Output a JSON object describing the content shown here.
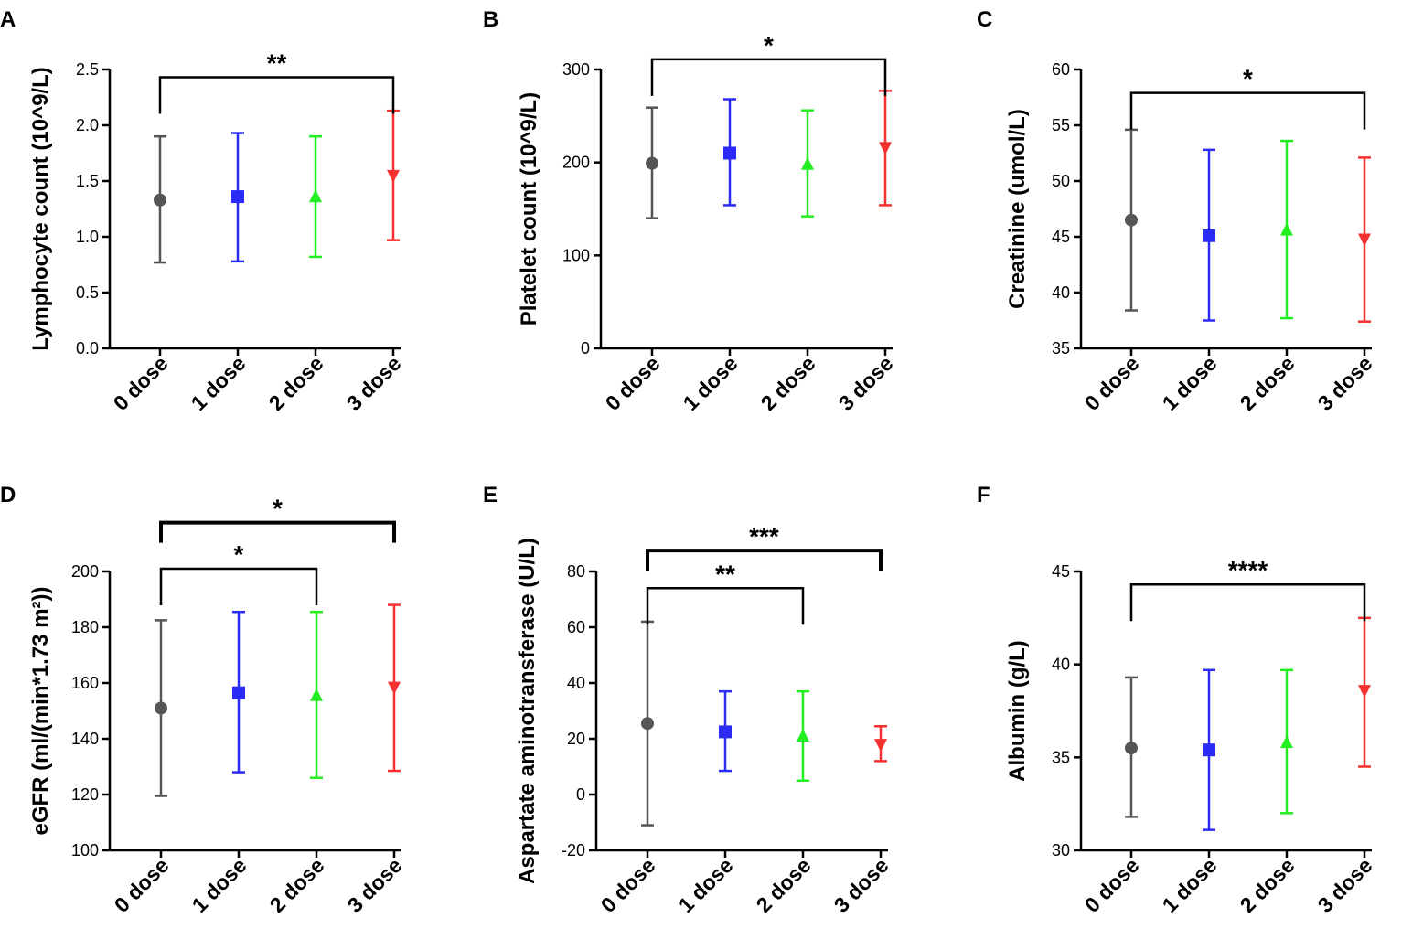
{
  "chart_data": [
    {
      "panel": "A",
      "type": "scatter",
      "title": "",
      "xlabel": "",
      "ylabel": "Lymphocyte count (10^9/L)",
      "categories": [
        "0 dose",
        "1 dose",
        "2 dose",
        "3 dose"
      ],
      "ylim": [
        0,
        2.5
      ],
      "yticks": [
        0.0,
        0.5,
        1.0,
        1.5,
        2.0,
        2.5
      ],
      "ytick_labels": [
        "0.0",
        "0.5",
        "1.0",
        "1.5",
        "2.0",
        "2.5"
      ],
      "points": [
        {
          "category": "0 dose",
          "mean": 1.33,
          "low": 0.77,
          "high": 1.9,
          "marker": "circle",
          "color": "#555555"
        },
        {
          "category": "1 dose",
          "mean": 1.36,
          "low": 0.78,
          "high": 1.93,
          "marker": "square",
          "color": "#2b2bf5"
        },
        {
          "category": "2 dose",
          "mean": 1.36,
          "low": 0.82,
          "high": 1.9,
          "marker": "triangle-up",
          "color": "#22ee22"
        },
        {
          "category": "3 dose",
          "mean": 1.55,
          "low": 0.97,
          "high": 2.13,
          "marker": "triangle-down",
          "color": "#f53030"
        }
      ],
      "significance": [
        {
          "from": "0 dose",
          "to": "3 dose",
          "label": "**",
          "y": 2.43,
          "thick": false
        }
      ]
    },
    {
      "panel": "B",
      "type": "scatter",
      "title": "",
      "xlabel": "",
      "ylabel": "Platelet count (10^9/L)",
      "categories": [
        "0 dose",
        "1 dose",
        "2 dose",
        "3 dose"
      ],
      "ylim": [
        0,
        300
      ],
      "yticks": [
        0,
        100,
        200,
        300
      ],
      "ytick_labels": [
        "0",
        "100",
        "200",
        "300"
      ],
      "points": [
        {
          "category": "0 dose",
          "mean": 199,
          "low": 140,
          "high": 259,
          "marker": "circle",
          "color": "#555555"
        },
        {
          "category": "1 dose",
          "mean": 210,
          "low": 154,
          "high": 268,
          "marker": "square",
          "color": "#2b2bf5"
        },
        {
          "category": "2 dose",
          "mean": 198,
          "low": 142,
          "high": 256,
          "marker": "triangle-up",
          "color": "#22ee22"
        },
        {
          "category": "3 dose",
          "mean": 216,
          "low": 154,
          "high": 277,
          "marker": "triangle-down",
          "color": "#f53030"
        }
      ],
      "significance": [
        {
          "from": "0 dose",
          "to": "3 dose",
          "label": "*",
          "y": 311,
          "thick": false
        }
      ]
    },
    {
      "panel": "C",
      "type": "scatter",
      "title": "",
      "xlabel": "",
      "ylabel": "Creatinine (umol/L)",
      "categories": [
        "0 dose",
        "1 dose",
        "2 dose",
        "3 dose"
      ],
      "ylim": [
        35,
        60
      ],
      "yticks": [
        35,
        40,
        45,
        50,
        55,
        60
      ],
      "ytick_labels": [
        "35",
        "40",
        "45",
        "50",
        "55",
        "60"
      ],
      "points": [
        {
          "category": "0 dose",
          "mean": 46.5,
          "low": 38.4,
          "high": 54.6,
          "marker": "circle",
          "color": "#555555"
        },
        {
          "category": "1 dose",
          "mean": 45.1,
          "low": 37.5,
          "high": 52.8,
          "marker": "square",
          "color": "#2b2bf5"
        },
        {
          "category": "2 dose",
          "mean": 45.6,
          "low": 37.7,
          "high": 53.6,
          "marker": "triangle-up",
          "color": "#22ee22"
        },
        {
          "category": "3 dose",
          "mean": 44.8,
          "low": 37.4,
          "high": 52.1,
          "marker": "triangle-down",
          "color": "#f53030"
        }
      ],
      "significance": [
        {
          "from": "0 dose",
          "to": "3 dose",
          "label": "*",
          "y": 57.9,
          "thick": false
        }
      ]
    },
    {
      "panel": "D",
      "type": "scatter",
      "title": "",
      "xlabel": "",
      "ylabel": "eGFR (ml/(min*1.73 m²))",
      "categories": [
        "0 dose",
        "1 dose",
        "2 dose",
        "3 dose"
      ],
      "ylim": [
        100,
        200
      ],
      "yticks": [
        100,
        120,
        140,
        160,
        180,
        200
      ],
      "ytick_labels": [
        "100",
        "120",
        "140",
        "160",
        "180",
        "200"
      ],
      "points": [
        {
          "category": "0 dose",
          "mean": 151,
          "low": 119.5,
          "high": 182.5,
          "marker": "circle",
          "color": "#555555"
        },
        {
          "category": "1 dose",
          "mean": 156.5,
          "low": 128,
          "high": 185.5,
          "marker": "square",
          "color": "#2b2bf5"
        },
        {
          "category": "2 dose",
          "mean": 155.5,
          "low": 126,
          "high": 185.5,
          "marker": "triangle-up",
          "color": "#22ee22"
        },
        {
          "category": "3 dose",
          "mean": 158.5,
          "low": 128.5,
          "high": 188,
          "marker": "triangle-down",
          "color": "#f53030"
        }
      ],
      "significance": [
        {
          "from": "0 dose",
          "to": "2 dose",
          "label": "*",
          "y": 201,
          "thick": false
        },
        {
          "from": "0 dose",
          "to": "3 dose",
          "label": "*",
          "y": 217.5,
          "thick": true
        }
      ]
    },
    {
      "panel": "E",
      "type": "scatter",
      "title": "",
      "xlabel": "",
      "ylabel": "Aspartate aminotransferase (U/L)",
      "categories": [
        "0 dose",
        "1 dose",
        "2 dose",
        "3 dose"
      ],
      "ylim": [
        -20,
        80
      ],
      "yticks": [
        -20,
        0,
        20,
        40,
        60,
        80
      ],
      "ytick_labels": [
        "-20",
        "0",
        "20",
        "40",
        "60",
        "80"
      ],
      "points": [
        {
          "category": "0 dose",
          "mean": 25.5,
          "low": -11,
          "high": 62,
          "marker": "circle",
          "color": "#555555"
        },
        {
          "category": "1 dose",
          "mean": 22.5,
          "low": 8.5,
          "high": 37,
          "marker": "square",
          "color": "#2b2bf5"
        },
        {
          "category": "2 dose",
          "mean": 21,
          "low": 5,
          "high": 37,
          "marker": "triangle-up",
          "color": "#22ee22"
        },
        {
          "category": "3 dose",
          "mean": 18,
          "low": 12,
          "high": 24.5,
          "marker": "triangle-down",
          "color": "#f53030"
        }
      ],
      "significance": [
        {
          "from": "0 dose",
          "to": "2 dose",
          "label": "**",
          "y": 74,
          "thick": false
        },
        {
          "from": "0 dose",
          "to": "3 dose",
          "label": "***",
          "y": 87.5,
          "thick": true
        }
      ]
    },
    {
      "panel": "F",
      "type": "scatter",
      "title": "",
      "xlabel": "",
      "ylabel": "Albumin (g/L)",
      "categories": [
        "0 dose",
        "1 dose",
        "2 dose",
        "3 dose"
      ],
      "ylim": [
        30,
        45
      ],
      "yticks": [
        30,
        35,
        40,
        45
      ],
      "ytick_labels": [
        "30",
        "35",
        "40",
        "45"
      ],
      "points": [
        {
          "category": "0 dose",
          "mean": 35.5,
          "low": 31.8,
          "high": 39.3,
          "marker": "circle",
          "color": "#555555"
        },
        {
          "category": "1 dose",
          "mean": 35.4,
          "low": 31.1,
          "high": 39.7,
          "marker": "square",
          "color": "#2b2bf5"
        },
        {
          "category": "2 dose",
          "mean": 35.8,
          "low": 32.0,
          "high": 39.7,
          "marker": "triangle-up",
          "color": "#22ee22"
        },
        {
          "category": "3 dose",
          "mean": 38.6,
          "low": 34.5,
          "high": 42.5,
          "marker": "triangle-down",
          "color": "#f53030"
        }
      ],
      "significance": [
        {
          "from": "0 dose",
          "to": "3 dose",
          "label": "****",
          "y": 44.3,
          "thick": false
        }
      ]
    }
  ]
}
